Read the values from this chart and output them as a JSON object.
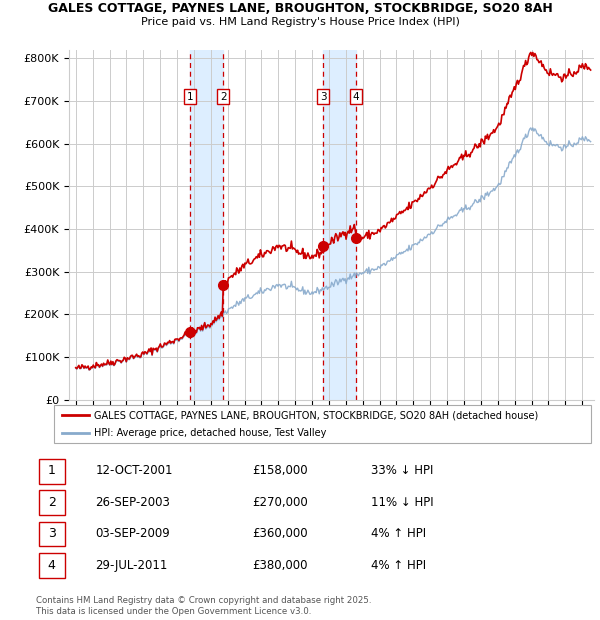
{
  "title_line1": "GALES COTTAGE, PAYNES LANE, BROUGHTON, STOCKBRIDGE, SO20 8AH",
  "title_line2": "Price paid vs. HM Land Registry's House Price Index (HPI)",
  "sale_info": [
    {
      "num": "1",
      "date": "12-OCT-2001",
      "price": "£158,000",
      "pct": "33% ↓ HPI"
    },
    {
      "num": "2",
      "date": "26-SEP-2003",
      "price": "£270,000",
      "pct": "11% ↓ HPI"
    },
    {
      "num": "3",
      "date": "03-SEP-2009",
      "price": "£360,000",
      "pct": "4% ↑ HPI"
    },
    {
      "num": "4",
      "date": "29-JUL-2011",
      "price": "£380,000",
      "pct": "4% ↑ HPI"
    }
  ],
  "sale_year_floats": [
    2001.79,
    2003.74,
    2009.67,
    2011.58
  ],
  "sale_prices": [
    158000,
    270000,
    360000,
    380000
  ],
  "legend_line1": "GALES COTTAGE, PAYNES LANE, BROUGHTON, STOCKBRIDGE, SO20 8AH (detached house)",
  "legend_line2": "HPI: Average price, detached house, Test Valley",
  "footnote": "Contains HM Land Registry data © Crown copyright and database right 2025.\nThis data is licensed under the Open Government Licence v3.0.",
  "price_line_color": "#cc0000",
  "hpi_line_color": "#88aacc",
  "background_color": "#ffffff",
  "grid_color": "#cccccc",
  "shade_color": "#ddeeff",
  "ylim": [
    0,
    820000
  ],
  "yticks": [
    0,
    100000,
    200000,
    300000,
    400000,
    500000,
    600000,
    700000,
    800000
  ],
  "ytick_labels": [
    "£0",
    "£100K",
    "£200K",
    "£300K",
    "£400K",
    "£500K",
    "£600K",
    "£700K",
    "£800K"
  ],
  "xlim_left": 1994.6,
  "xlim_right": 2025.7
}
